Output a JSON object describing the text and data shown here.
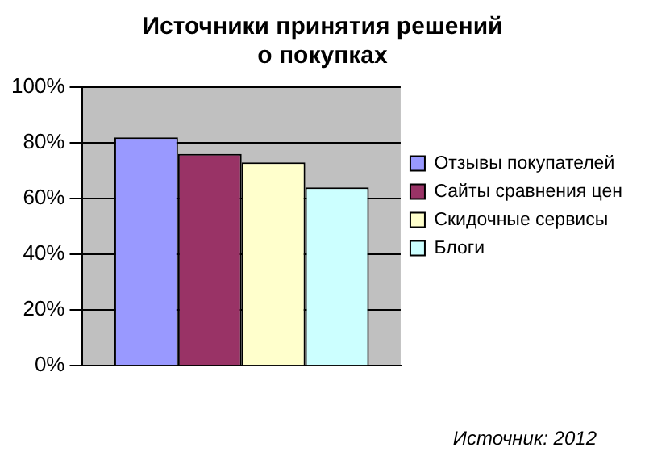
{
  "chart_data": {
    "type": "bar",
    "title": "Источники принятия решений о покупках",
    "categories": [
      null
    ],
    "series": [
      {
        "name": "Отзывы покупателей",
        "color": "#9999ff",
        "values": [
          82
        ]
      },
      {
        "name": "Сайты сравнения цен",
        "color": "#993366",
        "values": [
          76
        ]
      },
      {
        "name": "Скидочные сервисы",
        "color": "#ffffcc",
        "values": [
          73
        ]
      },
      {
        "name": "Блоги",
        "color": "#ccffff",
        "values": [
          64
        ]
      }
    ],
    "ylim": [
      0,
      100
    ],
    "yticks": [
      {
        "value": 0,
        "label": "0%"
      },
      {
        "value": 20,
        "label": "20%"
      },
      {
        "value": 40,
        "label": "40%"
      },
      {
        "value": 60,
        "label": "60%"
      },
      {
        "value": 80,
        "label": "80%"
      },
      {
        "value": 100,
        "label": "100%"
      }
    ],
    "grid": "y",
    "legend": "right",
    "annotations": [
      "Источник: 2012"
    ]
  }
}
